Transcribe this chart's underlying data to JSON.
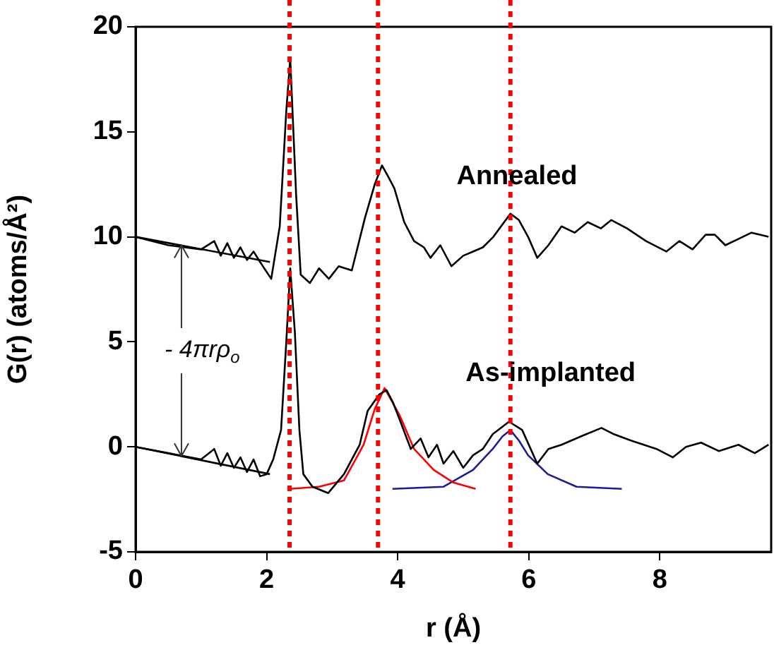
{
  "chart_data": {
    "type": "line",
    "xlabel": "r (Å)",
    "ylabel": "G(r) (atoms/Å²)",
    "xlim": [
      0,
      9.7
    ],
    "xticks": [
      0,
      2,
      4,
      6,
      8
    ],
    "ylim": [
      -5,
      20
    ],
    "yticks": [
      -5,
      0,
      5,
      10,
      15,
      20
    ],
    "grid": false,
    "legend": false,
    "marker": "none",
    "line_style": "solid",
    "series": [
      {
        "color": "#000000",
        "x": [
          0,
          0.5,
          1.0,
          1.2,
          1.3,
          1.4,
          1.5,
          1.6,
          1.7,
          1.8,
          1.9,
          2.07,
          2.2,
          2.3,
          2.36,
          2.45,
          2.52,
          2.66,
          2.8,
          2.95,
          3.1,
          3.3,
          3.5,
          3.65,
          3.76,
          3.85,
          3.95,
          4.1,
          4.25,
          4.4,
          4.5,
          4.65,
          4.82,
          5.0,
          5.15,
          5.3,
          5.46,
          5.72,
          5.85,
          5.99,
          6.13,
          6.3,
          6.5,
          6.7,
          6.9,
          7.1,
          7.26,
          7.5,
          7.79,
          8.1,
          8.3,
          8.5,
          8.7,
          8.84,
          9.0,
          9.2,
          9.4,
          9.66
        ],
        "values": [
          10,
          9.6,
          9.4,
          9.8,
          9.1,
          9.7,
          9.0,
          9.5,
          8.9,
          9.3,
          8.8,
          8.0,
          10.5,
          16,
          18.5,
          12,
          8.2,
          7.8,
          8.5,
          8.0,
          8.6,
          8.4,
          10.9,
          12.5,
          13.4,
          12.9,
          12.3,
          10.7,
          9.8,
          9.5,
          9.0,
          9.6,
          8.6,
          9.1,
          9.3,
          9.5,
          10.0,
          11.1,
          10.8,
          10.0,
          9.0,
          9.6,
          10.5,
          10.2,
          10.7,
          10.4,
          10.8,
          10.4,
          9.8,
          9.3,
          9.8,
          9.4,
          10.1,
          10.1,
          9.6,
          9.9,
          10.2,
          10.0
        ]
      },
      {
        "color": "#000000",
        "x": [
          0,
          0.5,
          1.0,
          1.2,
          1.3,
          1.4,
          1.5,
          1.6,
          1.7,
          1.8,
          1.9,
          2.0,
          2.1,
          2.22,
          2.3,
          2.36,
          2.43,
          2.5,
          2.56,
          2.7,
          2.94,
          3.18,
          3.42,
          3.54,
          3.72,
          3.83,
          3.93,
          4.03,
          4.2,
          4.35,
          4.47,
          4.6,
          4.7,
          4.85,
          5.0,
          5.15,
          5.3,
          5.45,
          5.7,
          5.9,
          6.13,
          6.3,
          6.5,
          6.8,
          7.11,
          7.3,
          7.56,
          7.95,
          8.2,
          8.4,
          8.63,
          8.9,
          9.2,
          9.45,
          9.66
        ],
        "values": [
          0,
          -0.3,
          -0.6,
          -0.1,
          -0.9,
          -0.3,
          -1.0,
          -0.5,
          -1.2,
          -0.6,
          -1.4,
          -1.3,
          -0.6,
          0.8,
          5.0,
          8.5,
          5.5,
          0.8,
          -1.3,
          -1.9,
          -2.2,
          -1.3,
          0.1,
          1.7,
          2.5,
          2.7,
          2.1,
          1.3,
          -0.1,
          0.4,
          -0.5,
          0.1,
          -0.8,
          -0.2,
          -1.0,
          -0.4,
          -0.1,
          0.6,
          1.2,
          0.8,
          -0.8,
          -0.1,
          0.1,
          0.5,
          0.9,
          0.6,
          0.3,
          -0.1,
          -0.5,
          0.0,
          0.2,
          -0.2,
          0.1,
          -0.3,
          0.1
        ]
      },
      {
        "color": "#000000",
        "x": [
          0,
          2.05
        ],
        "values": [
          10,
          8.8
        ]
      },
      {
        "color": "#000000",
        "x": [
          0,
          2.05
        ],
        "values": [
          0,
          -1.3
        ]
      },
      {
        "color": "#ff0000",
        "x": [
          2.35,
          2.8,
          3.18,
          3.48,
          3.65,
          3.8,
          4.03,
          4.25,
          4.55,
          4.85,
          5.19
        ],
        "values": [
          -2.0,
          -1.9,
          -1.6,
          0.1,
          1.8,
          2.8,
          1.5,
          -0.1,
          -1.1,
          -1.7,
          -2.0
        ]
      },
      {
        "color": "#1c1c99",
        "x": [
          3.92,
          4.7,
          5.15,
          5.45,
          5.6,
          5.72,
          5.85,
          5.99,
          6.29,
          6.73,
          7.42
        ],
        "values": [
          -2.0,
          -1.9,
          -1.1,
          -0.1,
          0.5,
          0.8,
          0.3,
          -0.4,
          -1.3,
          -1.9,
          -2.0
        ]
      }
    ],
    "ref_lines": [
      {
        "axis": "x",
        "value": 2.35,
        "color": "#ff0000",
        "line_style": "dotted"
      },
      {
        "axis": "x",
        "value": 3.7,
        "color": "#ff0000",
        "line_style": "dotted"
      },
      {
        "axis": "x",
        "value": 5.72,
        "color": "#ff0000",
        "line_style": "dotted"
      }
    ],
    "annotations": [
      "Annealed",
      "As-implanted",
      {
        "text": "- 4πrρ$_{o}$",
        "x": 0.7,
        "y": -0.44
      }
    ]
  }
}
